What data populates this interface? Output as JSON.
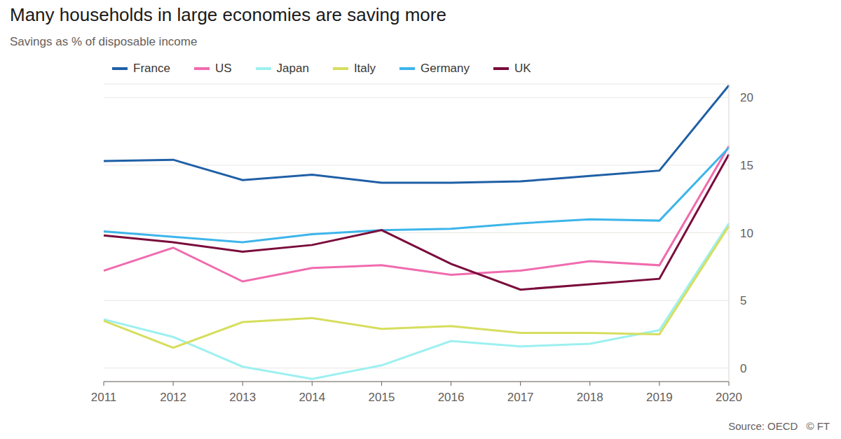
{
  "chart_data": {
    "type": "line",
    "title": "Many households in large economies are saving more",
    "subtitle": "Savings as % of disposable income",
    "source": "Source: OECD",
    "credit": "© FT",
    "categories": [
      "2011",
      "2012",
      "2013",
      "2014",
      "2015",
      "2016",
      "2017",
      "2018",
      "2019",
      "2020"
    ],
    "series": [
      {
        "name": "France",
        "color": "#1f5fa6",
        "values": [
          15.3,
          15.4,
          13.9,
          14.3,
          13.7,
          13.7,
          13.8,
          14.2,
          14.6,
          20.9
        ]
      },
      {
        "name": "US",
        "color": "#f06bae",
        "values": [
          7.2,
          8.9,
          6.4,
          7.4,
          7.6,
          6.9,
          7.2,
          7.9,
          7.6,
          16.4
        ]
      },
      {
        "name": "Japan",
        "color": "#9df0f0",
        "values": [
          3.6,
          2.3,
          0.1,
          -0.8,
          0.2,
          2.0,
          1.6,
          1.8,
          2.8,
          10.7
        ]
      },
      {
        "name": "Italy",
        "color": "#d6de5e",
        "values": [
          3.5,
          1.5,
          3.4,
          3.7,
          2.9,
          3.1,
          2.6,
          2.6,
          2.5,
          10.5
        ]
      },
      {
        "name": "Germany",
        "color": "#3db5ea",
        "values": [
          10.1,
          9.7,
          9.3,
          9.9,
          10.2,
          10.3,
          10.7,
          11.0,
          10.9,
          16.3
        ]
      },
      {
        "name": "UK",
        "color": "#7a0b3b",
        "values": [
          9.8,
          9.3,
          8.6,
          9.1,
          10.2,
          7.7,
          5.8,
          6.2,
          6.6,
          15.8
        ]
      }
    ],
    "ylim": [
      -1,
      21
    ],
    "yticks": [
      0,
      5,
      10,
      15,
      20
    ],
    "grid": true,
    "legend": "top-left"
  }
}
